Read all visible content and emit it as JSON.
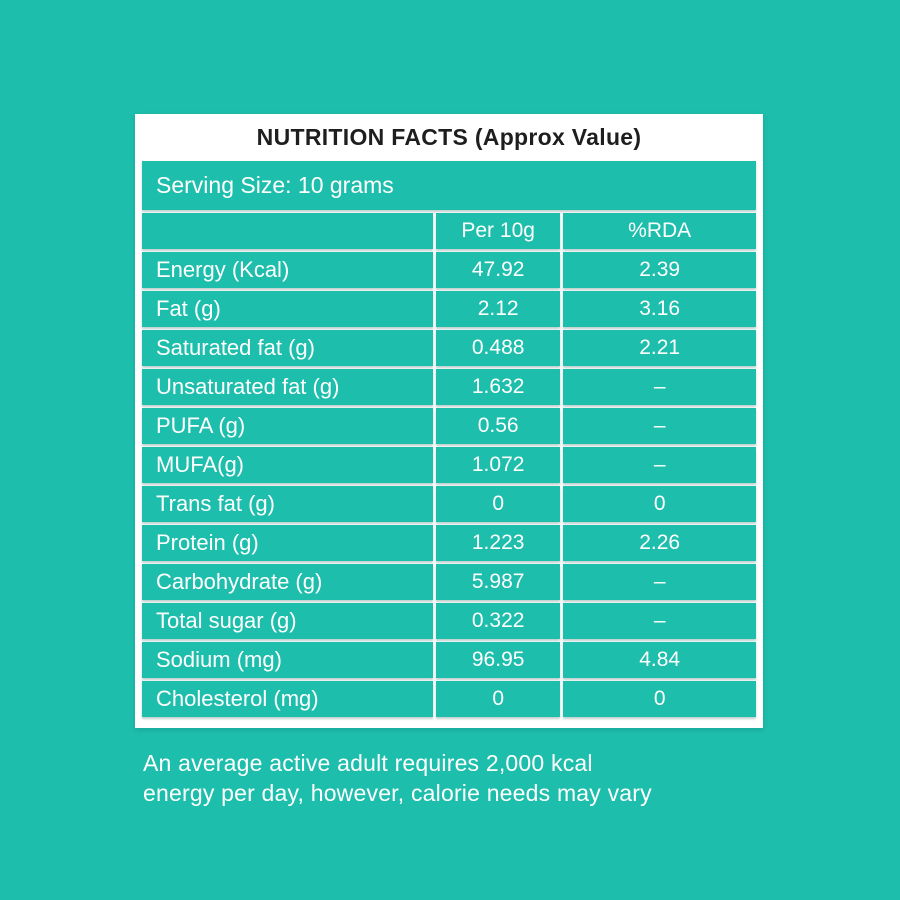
{
  "colors": {
    "background": "#1EBEAC",
    "card_white": "#FFFFFF",
    "title_text": "#1E1E1E",
    "cell_text": "#FFFFFF"
  },
  "table": {
    "title": "NUTRITION FACTS (Approx Value)",
    "serving_size": "Serving Size: 10 grams",
    "columns": [
      "",
      "Per 10g",
      "%RDA"
    ],
    "rows": [
      {
        "label": "Energy (Kcal)",
        "per10g": "47.92",
        "rda": "2.39"
      },
      {
        "label": "Fat (g)",
        "per10g": "2.12",
        "rda": "3.16"
      },
      {
        "label": "Saturated fat (g)",
        "per10g": "0.488",
        "rda": "2.21"
      },
      {
        "label": "Unsaturated fat (g)",
        "per10g": "1.632",
        "rda": "–"
      },
      {
        "label": "PUFA (g)",
        "per10g": "0.56",
        "rda": "–"
      },
      {
        "label": "MUFA(g)",
        "per10g": "1.072",
        "rda": "–"
      },
      {
        "label": "Trans fat (g)",
        "per10g": "0",
        "rda": "0"
      },
      {
        "label": "Protein (g)",
        "per10g": "1.223",
        "rda": "2.26"
      },
      {
        "label": "Carbohydrate (g)",
        "per10g": "5.987",
        "rda": "–"
      },
      {
        "label": "Total sugar (g)",
        "per10g": "0.322",
        "rda": "–"
      },
      {
        "label": "Sodium (mg)",
        "per10g": "96.95",
        "rda": "4.84"
      },
      {
        "label": "Cholesterol (mg)",
        "per10g": "0",
        "rda": "0"
      }
    ]
  },
  "footer": {
    "line1": "An average active adult requires 2,000 kcal",
    "line2": "energy per day, however, calorie needs may vary"
  }
}
